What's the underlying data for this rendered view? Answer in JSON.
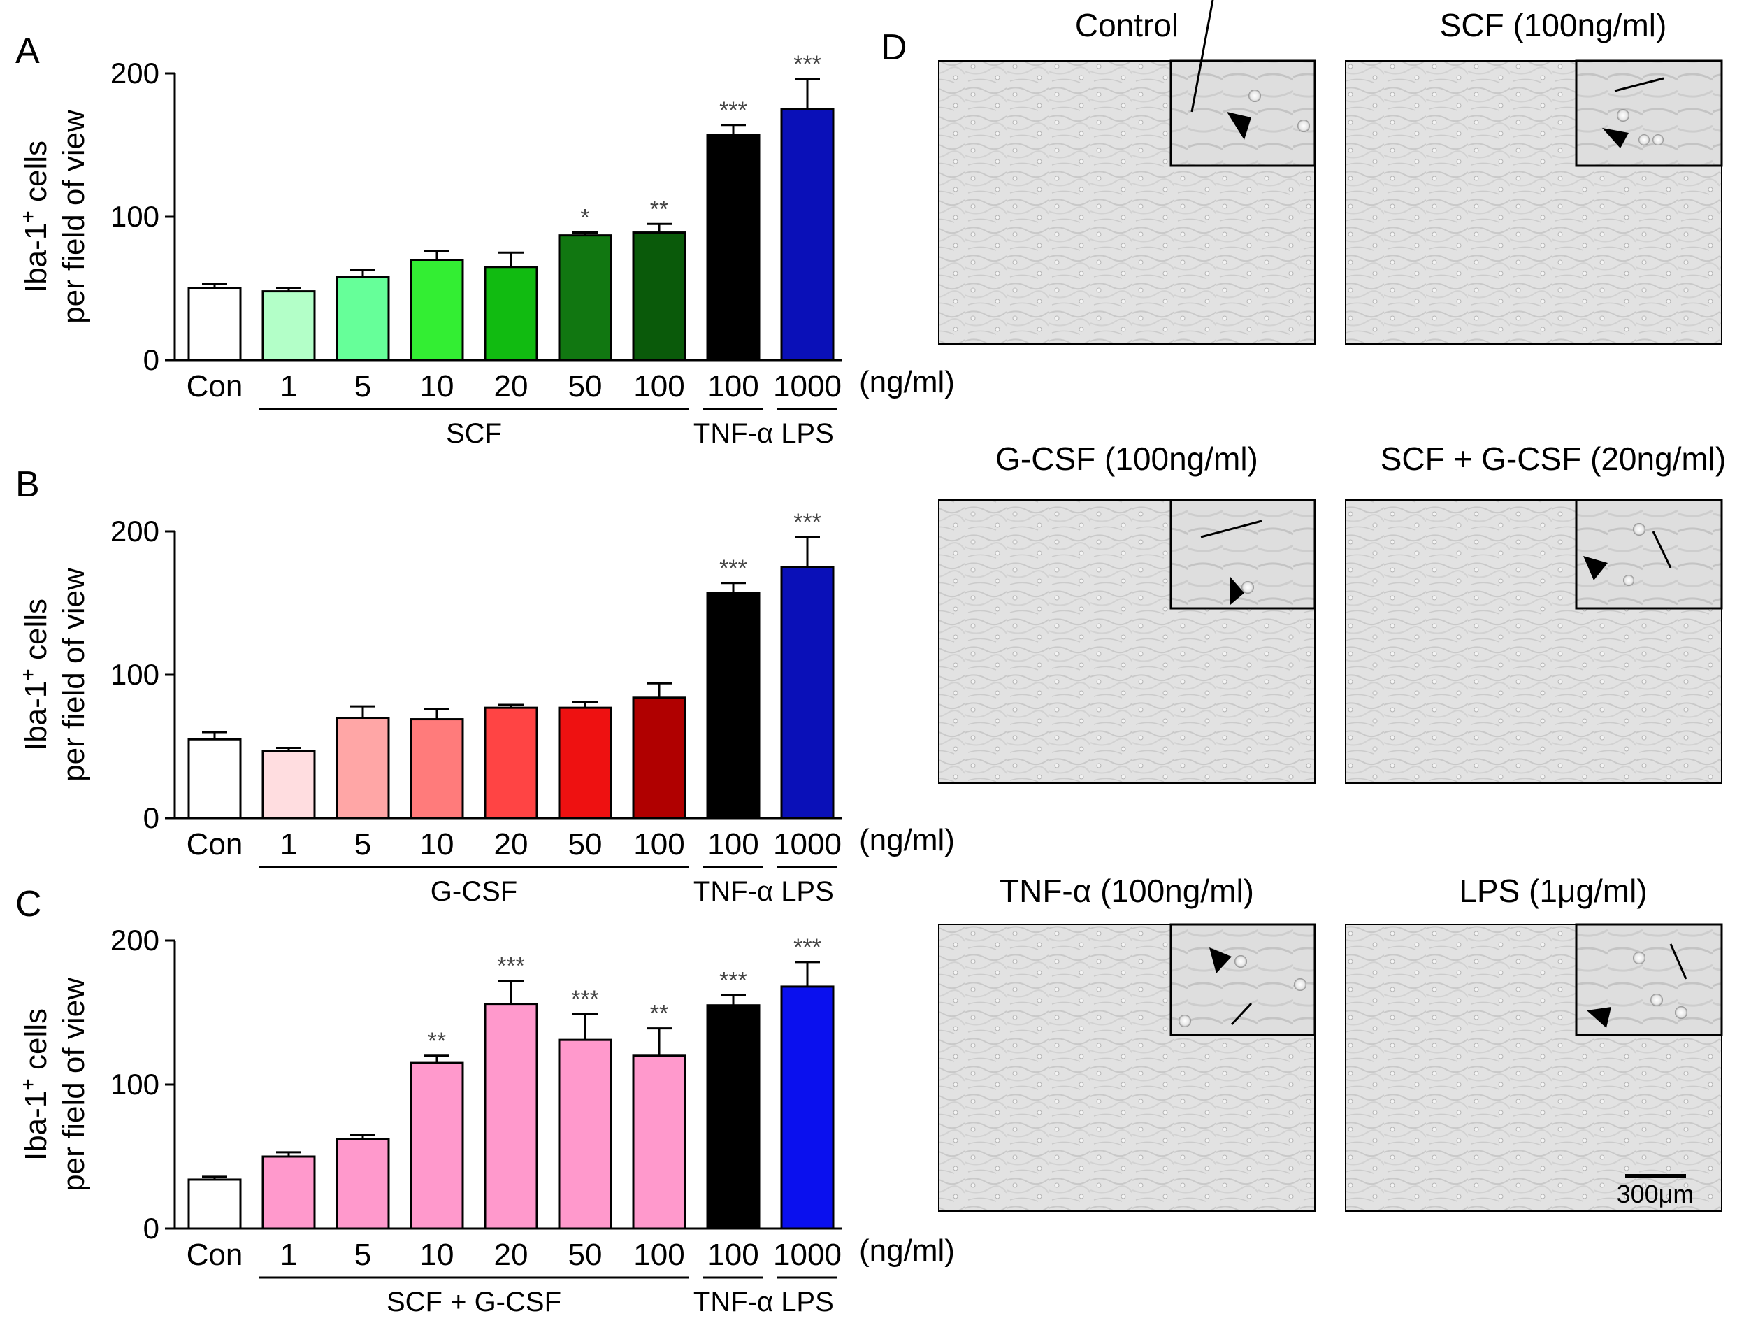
{
  "panel_letters": [
    "A",
    "B",
    "C",
    "D"
  ],
  "units_label": "(ng/ml)",
  "y_label_line1": "Iba-1",
  "y_label_sup": "+",
  "y_label_line1_rest": " cells",
  "y_label_line2": "per field of view",
  "chart_data": [
    {
      "type": "bar",
      "panel": "A",
      "categories": [
        "Con",
        "1",
        "5",
        "10",
        "20",
        "50",
        "100",
        "100",
        "1000"
      ],
      "values": [
        50,
        48,
        58,
        70,
        65,
        87,
        89,
        157,
        175
      ],
      "errors": [
        3,
        2,
        5,
        6,
        10,
        2,
        6,
        7,
        21
      ],
      "significance": [
        "",
        "",
        "",
        "",
        "",
        "*",
        "**",
        "***",
        "***"
      ],
      "colors": [
        "#ffffff",
        "#b3ffc8",
        "#66ff99",
        "#33ee33",
        "#11bb11",
        "#117711",
        "#0a5a0a",
        "#000000",
        "#0a10b8"
      ],
      "groups": [
        {
          "label": "SCF",
          "start": 1,
          "end": 6
        },
        {
          "label": "TNF-α",
          "start": 7,
          "end": 7
        },
        {
          "label": "LPS",
          "start": 8,
          "end": 8
        }
      ],
      "ylim": [
        0,
        200
      ],
      "yticks": [
        0,
        100,
        200
      ],
      "ylabel": "Iba-1+ cells per field of view",
      "xlabel": "(ng/ml)"
    },
    {
      "type": "bar",
      "panel": "B",
      "categories": [
        "Con",
        "1",
        "5",
        "10",
        "20",
        "50",
        "100",
        "100",
        "1000"
      ],
      "values": [
        55,
        47,
        70,
        69,
        77,
        77,
        84,
        157,
        175
      ],
      "errors": [
        5,
        2,
        8,
        7,
        2,
        4,
        10,
        7,
        21
      ],
      "significance": [
        "",
        "",
        "",
        "",
        "",
        "",
        "",
        "***",
        "***"
      ],
      "colors": [
        "#ffffff",
        "#ffdde0",
        "#ffa6a6",
        "#ff7b7b",
        "#ff4444",
        "#ee1111",
        "#b00000",
        "#000000",
        "#0a10b8"
      ],
      "groups": [
        {
          "label": "G-CSF",
          "start": 1,
          "end": 6
        },
        {
          "label": "TNF-α",
          "start": 7,
          "end": 7
        },
        {
          "label": "LPS",
          "start": 8,
          "end": 8
        }
      ],
      "ylim": [
        0,
        200
      ],
      "yticks": [
        0,
        100,
        200
      ],
      "ylabel": "Iba-1+ cells per field of view",
      "xlabel": "(ng/ml)"
    },
    {
      "type": "bar",
      "panel": "C",
      "categories": [
        "Con",
        "1",
        "5",
        "10",
        "20",
        "50",
        "100",
        "100",
        "1000"
      ],
      "values": [
        34,
        50,
        62,
        115,
        156,
        131,
        120,
        155,
        168
      ],
      "errors": [
        2,
        3,
        3,
        5,
        16,
        18,
        19,
        7,
        17
      ],
      "significance": [
        "",
        "",
        "",
        "**",
        "***",
        "***",
        "**",
        "***",
        "***"
      ],
      "colors": [
        "#ffffff",
        "#ff99cc",
        "#ff99cc",
        "#ff99cc",
        "#ff99cc",
        "#ff99cc",
        "#ff99cc",
        "#000000",
        "#0a10ee"
      ],
      "groups": [
        {
          "label": "SCF + G-CSF",
          "start": 1,
          "end": 6
        },
        {
          "label": "TNF-α",
          "start": 7,
          "end": 7
        },
        {
          "label": "LPS",
          "start": 8,
          "end": 8
        }
      ],
      "ylim": [
        0,
        200
      ],
      "yticks": [
        0,
        100,
        200
      ],
      "ylabel": "Iba-1+ cells per field of view",
      "xlabel": "(ng/ml)"
    }
  ],
  "micrographs": {
    "panel": "D",
    "titles": [
      "Control",
      "SCF (100ng/ml)",
      "G-CSF (100ng/ml)",
      "SCF + G-CSF (20ng/ml)",
      "TNF-α (100ng/ml)",
      "LPS (1μg/ml)"
    ],
    "scale_bar": "300μm"
  }
}
